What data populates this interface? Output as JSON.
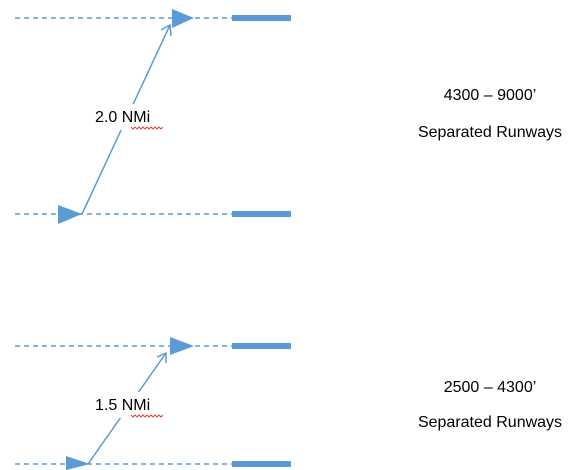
{
  "colors": {
    "line": "#5b9bd5",
    "runway": "#5b9bd5",
    "spellcheck_underline": "#e04040",
    "text": "#000000"
  },
  "groups": [
    {
      "distance_value": "2.0",
      "distance_unit": "NMi",
      "range_text": "4300 – 9000’",
      "description_text": "Separated Runways"
    },
    {
      "distance_value": "1.5",
      "distance_unit": "NMi",
      "range_text": "2500 – 4300’",
      "description_text": "Separated Runways"
    }
  ]
}
